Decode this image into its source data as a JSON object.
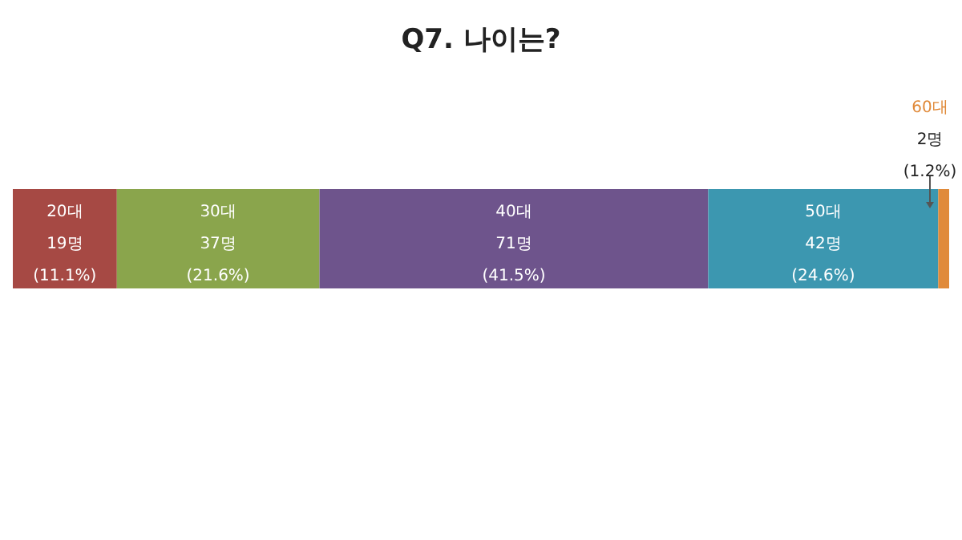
{
  "chart_data": {
    "type": "bar",
    "title": "Q7. 나이는?",
    "orientation": "horizontal",
    "stacked": true,
    "categories": [
      null
    ],
    "series": [
      {
        "name": "20대",
        "color": "#a64944",
        "values": [
          19
        ],
        "value_labels": [
          "19명\n(11.1%)"
        ]
      },
      {
        "name": "30대",
        "color": "#8aa54c",
        "values": [
          37
        ],
        "value_labels": [
          "37명\n(21.6%)"
        ]
      },
      {
        "name": "40대",
        "color": "#6e548c",
        "values": [
          71
        ],
        "value_labels": [
          "71명\n(41.5%)"
        ]
      },
      {
        "name": "50대",
        "color": "#3c97b0",
        "values": [
          42
        ],
        "value_labels": [
          "42명\n(24.6%)"
        ]
      },
      {
        "name": "60대",
        "color": "#e08a3a",
        "values": [
          2
        ],
        "value_labels": [
          "2명\n(1.2%)"
        ]
      }
    ]
  }
}
